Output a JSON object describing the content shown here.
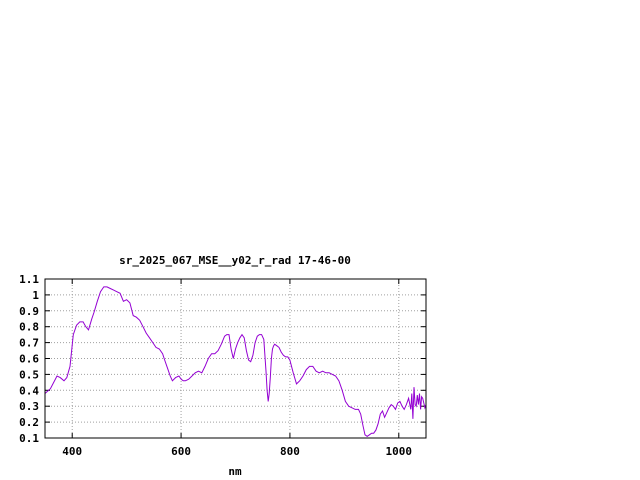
{
  "chart_data": {
    "type": "line",
    "title": "sr_2025_067_MSE__y02_r_rad 17-46-00",
    "xlabel": "nm",
    "ylabel": "",
    "xlim": [
      350,
      1050
    ],
    "ylim": [
      0.1,
      1.1
    ],
    "grid": true,
    "line_color": "#9400d3",
    "x_ticks": [
      {
        "value": 400,
        "label": "400"
      },
      {
        "value": 600,
        "label": "600"
      },
      {
        "value": 800,
        "label": "800"
      },
      {
        "value": 1000,
        "label": "1000"
      }
    ],
    "y_ticks": [
      {
        "value": 0.1,
        "label": "0.1"
      },
      {
        "value": 0.2,
        "label": "0.2"
      },
      {
        "value": 0.3,
        "label": "0.3"
      },
      {
        "value": 0.4,
        "label": "0.4"
      },
      {
        "value": 0.5,
        "label": "0.5"
      },
      {
        "value": 0.6,
        "label": "0.6"
      },
      {
        "value": 0.7,
        "label": "0.7"
      },
      {
        "value": 0.8,
        "label": "0.8"
      },
      {
        "value": 0.9,
        "label": "0.9"
      },
      {
        "value": 1.0,
        "label": "1"
      },
      {
        "value": 1.1,
        "label": "1.1"
      }
    ],
    "series": [
      {
        "x": [
          350,
          360,
          366,
          372,
          378,
          385,
          390,
          396,
          402,
          408,
          414,
          420,
          425,
          430,
          436,
          440,
          446,
          452,
          458,
          464,
          470,
          476,
          482,
          488,
          494,
          500,
          506,
          512,
          518,
          524,
          530,
          536,
          542,
          548,
          554,
          560,
          566,
          570,
          576,
          580,
          584,
          590,
          596,
          600,
          604,
          608,
          614,
          620,
          626,
          632,
          638,
          644,
          650,
          656,
          662,
          668,
          674,
          680,
          684,
          688,
          692,
          696,
          700,
          704,
          708,
          712,
          716,
          720,
          724,
          728,
          732,
          736,
          740,
          744,
          748,
          752,
          756,
          758,
          760,
          762,
          764,
          766,
          768,
          770,
          772,
          776,
          780,
          784,
          788,
          792,
          796,
          800,
          806,
          812,
          818,
          824,
          830,
          836,
          842,
          848,
          854,
          860,
          866,
          872,
          878,
          884,
          890,
          896,
          902,
          908,
          914,
          920,
          926,
          930,
          934,
          938,
          942,
          946,
          950,
          954,
          958,
          962,
          966,
          970,
          974,
          978,
          982,
          986,
          990,
          994,
          998,
          1002,
          1006,
          1010,
          1014,
          1018,
          1022,
          1024,
          1026,
          1028,
          1030,
          1032,
          1034,
          1036,
          1038,
          1040,
          1042,
          1044,
          1046,
          1048,
          1050
        ],
        "y": [
          0.38,
          0.41,
          0.45,
          0.49,
          0.48,
          0.46,
          0.48,
          0.55,
          0.75,
          0.81,
          0.83,
          0.83,
          0.8,
          0.78,
          0.85,
          0.89,
          0.96,
          1.02,
          1.05,
          1.05,
          1.04,
          1.03,
          1.02,
          1.01,
          0.96,
          0.97,
          0.95,
          0.87,
          0.86,
          0.84,
          0.8,
          0.76,
          0.73,
          0.7,
          0.67,
          0.66,
          0.63,
          0.59,
          0.53,
          0.49,
          0.46,
          0.48,
          0.49,
          0.47,
          0.46,
          0.46,
          0.47,
          0.49,
          0.51,
          0.52,
          0.51,
          0.55,
          0.6,
          0.63,
          0.63,
          0.65,
          0.69,
          0.74,
          0.75,
          0.75,
          0.66,
          0.6,
          0.66,
          0.7,
          0.73,
          0.75,
          0.73,
          0.65,
          0.59,
          0.58,
          0.62,
          0.7,
          0.74,
          0.75,
          0.75,
          0.72,
          0.52,
          0.4,
          0.33,
          0.38,
          0.48,
          0.6,
          0.66,
          0.68,
          0.69,
          0.68,
          0.67,
          0.64,
          0.62,
          0.61,
          0.61,
          0.59,
          0.51,
          0.44,
          0.46,
          0.49,
          0.53,
          0.55,
          0.55,
          0.52,
          0.51,
          0.52,
          0.51,
          0.51,
          0.5,
          0.49,
          0.46,
          0.4,
          0.33,
          0.3,
          0.29,
          0.28,
          0.28,
          0.25,
          0.18,
          0.12,
          0.11,
          0.12,
          0.13,
          0.13,
          0.15,
          0.19,
          0.25,
          0.27,
          0.23,
          0.26,
          0.29,
          0.31,
          0.3,
          0.28,
          0.32,
          0.33,
          0.3,
          0.28,
          0.31,
          0.35,
          0.28,
          0.38,
          0.22,
          0.42,
          0.31,
          0.3,
          0.37,
          0.31,
          0.38,
          0.28,
          0.36,
          0.35,
          0.32,
          0.29,
          0.31
        ]
      }
    ]
  }
}
